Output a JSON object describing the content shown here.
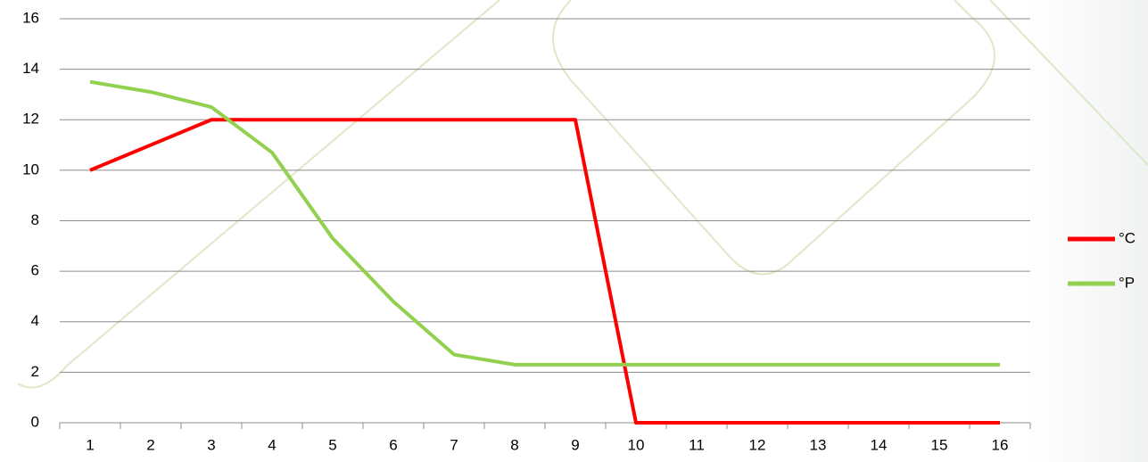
{
  "chart_data": {
    "type": "line",
    "categories": [
      "1",
      "2",
      "3",
      "4",
      "5",
      "6",
      "7",
      "8",
      "9",
      "10",
      "11",
      "12",
      "13",
      "14",
      "15",
      "16"
    ],
    "series": [
      {
        "name": "°C",
        "color": "#ff0000",
        "values": [
          10,
          11,
          12,
          12,
          12,
          12,
          12,
          12,
          12,
          0,
          0,
          0,
          0,
          0,
          0,
          0
        ]
      },
      {
        "name": "°P",
        "color": "#92d050",
        "values": [
          13.5,
          13.1,
          12.5,
          10.7,
          7.3,
          4.8,
          2.7,
          2.3,
          2.3,
          2.3,
          2.3,
          2.3,
          2.3,
          2.3,
          2.3,
          2.3
        ]
      }
    ],
    "ylim": [
      0,
      16
    ],
    "yticks": [
      0,
      2,
      4,
      6,
      8,
      10,
      12,
      14,
      16
    ],
    "grid": true,
    "legend": "right"
  }
}
